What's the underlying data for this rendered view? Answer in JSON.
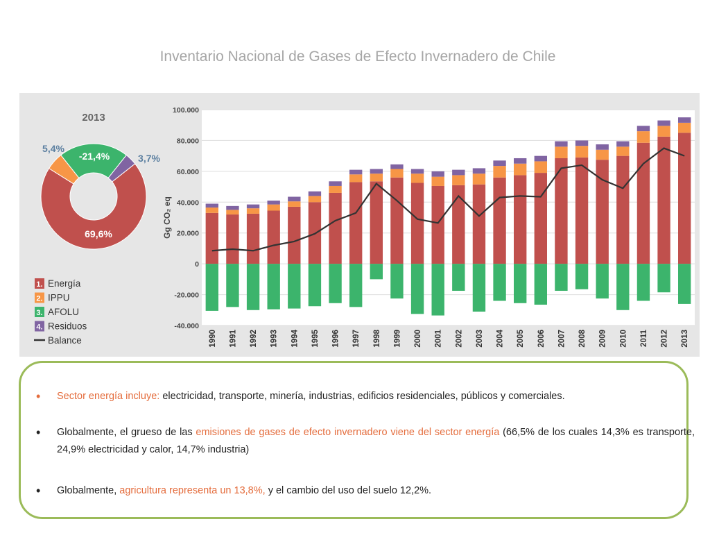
{
  "title": "Inventario Nacional de Gases de Efecto Invernadero de Chile",
  "colors": {
    "energia": "#c0504d",
    "ippu": "#f79646",
    "afolu": "#3cb46c",
    "residuos": "#8064a2",
    "balance": "#333333",
    "highlight": "#e46c3c",
    "border": "#9bbb59"
  },
  "chart_data": [
    {
      "type": "pie",
      "title": "2013",
      "slices": [
        {
          "name": "Energía",
          "value": 69.6,
          "label": "69,6%",
          "color": "#c0504d"
        },
        {
          "name": "IPPU",
          "value": 5.4,
          "label": "5,4%",
          "color": "#f79646"
        },
        {
          "name": "AFOLU",
          "value": 21.4,
          "label": "-21,4%",
          "color": "#3cb46c"
        },
        {
          "name": "Residuos",
          "value": 3.7,
          "label": "3,7%",
          "color": "#8064a2"
        }
      ],
      "legend": [
        {
          "num": "1.",
          "label": "Energía",
          "color": "#c0504d"
        },
        {
          "num": "2.",
          "label": "IPPU",
          "color": "#f79646"
        },
        {
          "num": "3.",
          "label": "AFOLU",
          "color": "#3cb46c"
        },
        {
          "num": "4.",
          "label": "Residuos",
          "color": "#8064a2"
        },
        {
          "num": "",
          "label": "Balance",
          "color": "#333333"
        }
      ]
    },
    {
      "type": "bar",
      "stacked": true,
      "ylabel": "Gg CO₂ eq",
      "ylim": [
        -40000,
        100000
      ],
      "yticks": [
        {
          "value": 100000,
          "label": "100.000"
        },
        {
          "value": 80000,
          "label": "80.000"
        },
        {
          "value": 60000,
          "label": "60.000"
        },
        {
          "value": 40000,
          "label": "40.000"
        },
        {
          "value": 20000,
          "label": "20.000"
        },
        {
          "value": 0,
          "label": "0"
        },
        {
          "value": -20000,
          "label": "-20.000"
        },
        {
          "value": -40000,
          "label": "-40.000"
        }
      ],
      "grid": true,
      "categories": [
        "1990",
        "1991",
        "1992",
        "1993",
        "1994",
        "1995",
        "1996",
        "1997",
        "1998",
        "1999",
        "2000",
        "2001",
        "2002",
        "2003",
        "2004",
        "2005",
        "2006",
        "2007",
        "2008",
        "2009",
        "2010",
        "2011",
        "2012",
        "2013"
      ],
      "series": [
        {
          "name": "Energía",
          "color": "#c0504d",
          "values": [
            33000,
            32000,
            32500,
            34500,
            37000,
            40000,
            46000,
            53000,
            53500,
            56000,
            52500,
            50500,
            51000,
            51500,
            56000,
            57500,
            59000,
            68500,
            69000,
            67500,
            70000,
            78500,
            82500,
            85000
          ]
        },
        {
          "name": "IPPU",
          "color": "#f79646",
          "values": [
            3500,
            3000,
            3500,
            4000,
            3500,
            4000,
            4500,
            5000,
            5000,
            5500,
            6000,
            6000,
            6500,
            7000,
            7500,
            7500,
            7500,
            7500,
            7500,
            6500,
            6000,
            7500,
            7000,
            6500
          ]
        },
        {
          "name": "AFOLU",
          "color": "#3cb46c",
          "values": [
            -30500,
            -28000,
            -30000,
            -29500,
            -29000,
            -27500,
            -25500,
            -28000,
            -10000,
            -22500,
            -32500,
            -33500,
            -17500,
            -31000,
            -24000,
            -25500,
            -26500,
            -17500,
            -16500,
            -22500,
            -30000,
            -24000,
            -18500,
            -26000
          ]
        },
        {
          "name": "Residuos",
          "color": "#8064a2",
          "values": [
            2500,
            2500,
            2500,
            2500,
            3000,
            3000,
            3000,
            3000,
            3000,
            3000,
            3000,
            3500,
            3500,
            3500,
            3500,
            3500,
            3500,
            3500,
            3500,
            3500,
            3500,
            3500,
            3500,
            3500
          ]
        },
        {
          "name": "Balance",
          "type": "line",
          "color": "#333333",
          "values": [
            8500,
            9500,
            8500,
            12000,
            14500,
            19500,
            28000,
            33000,
            52000,
            41000,
            29000,
            26500,
            44000,
            31000,
            43000,
            44000,
            43500,
            62000,
            64000,
            54500,
            49000,
            65000,
            75000,
            70000
          ]
        }
      ]
    }
  ],
  "notes": [
    {
      "highlight": "Sector energía incluye:",
      "text": " electricidad, transporte, minería, industrias, edificios residenciales, públicos y comerciales."
    },
    {
      "pre": "Globalmente, el grueso de las ",
      "highlight": "emisiones de gases de efecto invernadero viene del sector energía",
      "text": " (66,5% de los cuales 14,3% es transporte, 24,9% electricidad y calor, 14,7% industria)"
    },
    {
      "pre": "Globalmente, ",
      "highlight": "agricultura representa un 13,8%,",
      "text": " y el cambio del uso del suelo 12,2%."
    }
  ],
  "bullet_symbol": "•"
}
